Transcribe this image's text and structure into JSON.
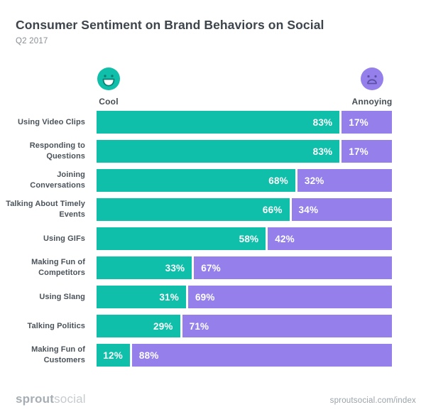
{
  "header": {
    "title": "Consumer Sentiment on Brand Behaviors on Social",
    "subtitle": "Q2 2017"
  },
  "legend": {
    "cool": {
      "label": "Cool",
      "icon": "happy-face-icon"
    },
    "annoying": {
      "label": "Annoying",
      "icon": "sad-face-icon"
    }
  },
  "footer": {
    "logo_bold": "sprout",
    "logo_light": "social",
    "url": "sproutsocial.com/index"
  },
  "colors": {
    "cool": "#0FBFA9",
    "cool_dark": "#0B7E71",
    "annoying": "#9580EB",
    "annoying_dark": "#5C50A5",
    "title": "#3D444B",
    "subtitle": "#878F94",
    "row_label": "#4A525A",
    "legend_label": "#454D54",
    "logo_bold": "#A6AEB4",
    "logo_light": "#C5CBCF",
    "url": "#99A2A8"
  },
  "chart_data": {
    "type": "bar",
    "orientation": "horizontal-stacked",
    "title": "Consumer Sentiment on Brand Behaviors on Social",
    "subtitle": "Q2 2017",
    "value_format": "percent",
    "xlim": [
      0,
      100
    ],
    "grid": false,
    "legend_position": "top",
    "categories": [
      "Using Video Clips",
      "Responding to Questions",
      "Joining Conversations",
      "Talking About Timely Events",
      "Using GIFs",
      "Making Fun of Competitors",
      "Using Slang",
      "Talking Politics",
      "Making Fun of Customers"
    ],
    "series": [
      {
        "name": "Cool",
        "color": "#0FBFA9",
        "values": [
          83,
          83,
          68,
          66,
          58,
          33,
          31,
          29,
          12
        ]
      },
      {
        "name": "Annoying",
        "color": "#9580EB",
        "values": [
          17,
          17,
          32,
          34,
          42,
          67,
          69,
          71,
          88
        ]
      }
    ]
  }
}
